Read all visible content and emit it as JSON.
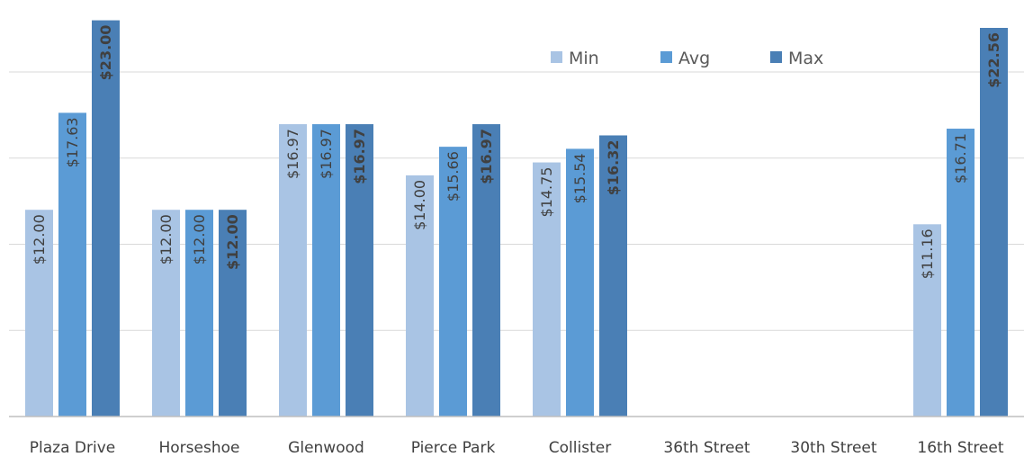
{
  "chart_data": {
    "type": "bar",
    "title": "",
    "xlabel": "",
    "ylabel": "",
    "ylim": [
      0,
      23.5
    ],
    "grid": true,
    "gridlines_at": [
      5,
      10,
      15,
      20
    ],
    "legend_position": "top-right",
    "categories": [
      "Plaza Drive",
      "Horseshoe",
      "Glenwood",
      "Pierce Park",
      "Collister",
      "36th Street",
      "30th Street",
      "16th Street"
    ],
    "series": [
      {
        "name": "Min",
        "color": "#a9c4e4",
        "values": [
          12.0,
          12.0,
          16.97,
          14.0,
          14.75,
          null,
          null,
          11.16
        ],
        "labels": [
          "$12.00",
          "$12.00",
          "$16.97",
          "$14.00",
          "$14.75",
          "",
          "",
          "$11.16"
        ],
        "bold_labels": false
      },
      {
        "name": "Avg",
        "color": "#5b9bd5",
        "values": [
          17.63,
          12.0,
          16.97,
          15.66,
          15.54,
          null,
          null,
          16.71
        ],
        "labels": [
          "$17.63",
          "$12.00",
          "$16.97",
          "$15.66",
          "$15.54",
          "",
          "",
          "$16.71"
        ],
        "bold_labels": false
      },
      {
        "name": "Max",
        "color": "#4a7fb5",
        "values": [
          23.0,
          12.0,
          16.97,
          16.97,
          16.32,
          null,
          null,
          22.56
        ],
        "labels": [
          "$23.00",
          "$12.00",
          "$16.97",
          "$16.97",
          "$16.32",
          "",
          "",
          "$22.56"
        ],
        "bold_labels": true
      }
    ]
  }
}
